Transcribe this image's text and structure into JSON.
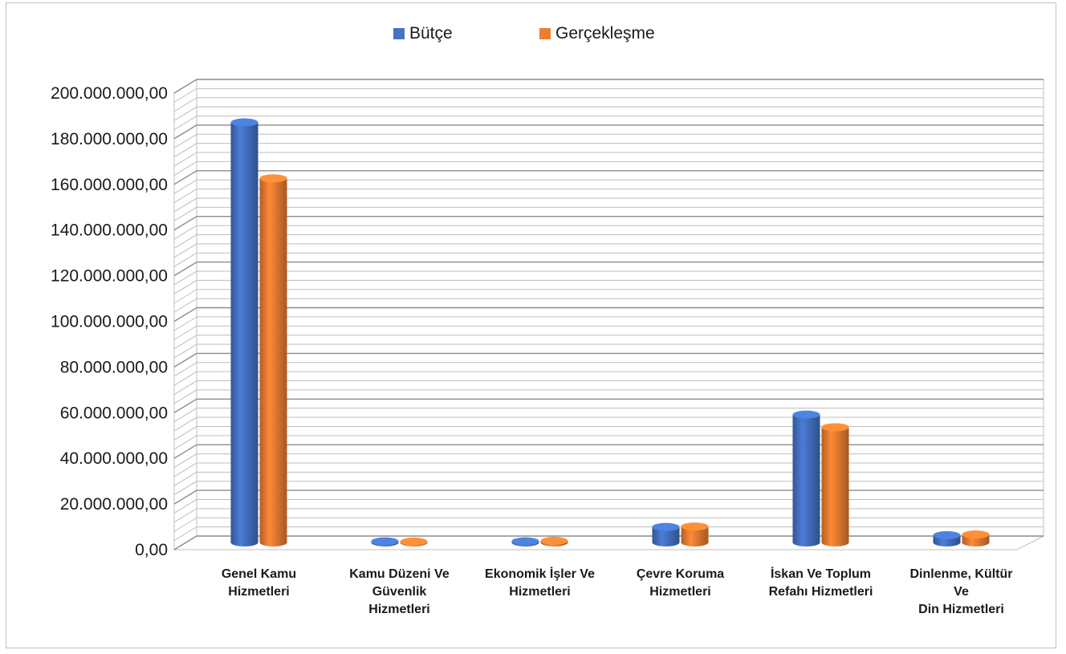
{
  "chart_data": {
    "type": "bar",
    "categories": [
      "Genel Kamu\nHizmetleri",
      "Kamu Düzeni Ve\nGüvenlik\nHizmetleri",
      "Ekonomik İşler Ve\nHizmetleri",
      "Çevre Koruma\nHizmetleri",
      "İskan Ve Toplum\nRefahı Hizmetleri",
      "Dinlenme, Kültür\nVe\nDin Hizmetleri"
    ],
    "series": [
      {
        "name": "Bütçe",
        "color": "#4472c4",
        "values": [
          184000000,
          500000,
          500000,
          6800000,
          56000000,
          3200000
        ]
      },
      {
        "name": "Gerçekleşme",
        "color": "#ed7d31",
        "values": [
          159500000,
          400000,
          700000,
          7000000,
          50500000,
          3500000
        ]
      }
    ],
    "ylim": [
      0,
      200000000
    ],
    "yticks": [
      0,
      20000000,
      40000000,
      60000000,
      80000000,
      100000000,
      120000000,
      140000000,
      160000000,
      180000000,
      200000000
    ],
    "ytick_labels": [
      "0,00",
      "20.000.000,00",
      "40.000.000,00",
      "60.000.000,00",
      "80.000.000,00",
      "100.000.000,00",
      "120.000.000,00",
      "140.000.000,00",
      "160.000.000,00",
      "180.000.000,00",
      "200.000.000,00"
    ],
    "grid": true,
    "legend": "top-center",
    "title": "",
    "xlabel": "",
    "ylabel": ""
  }
}
